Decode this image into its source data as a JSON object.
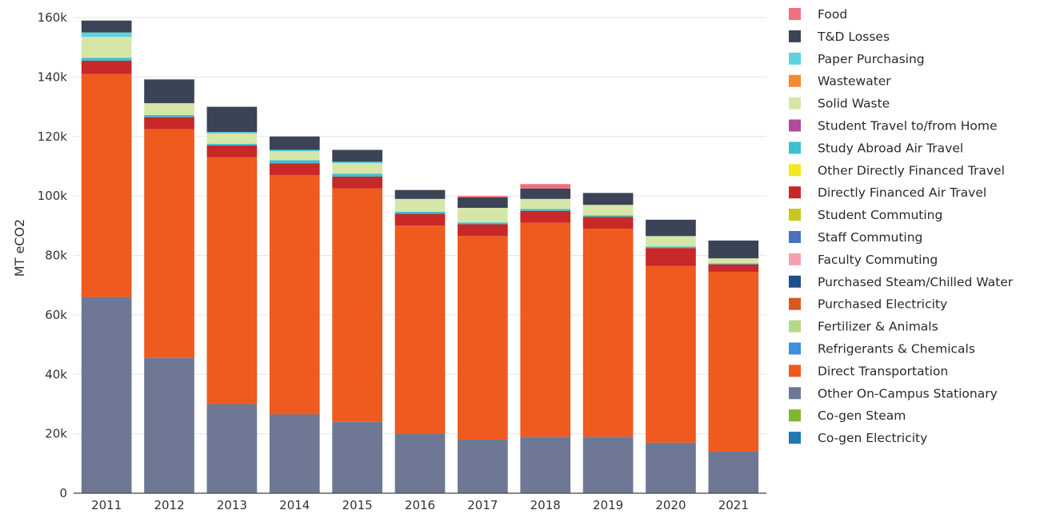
{
  "chart_data": {
    "type": "bar",
    "stacked": true,
    "ylabel": "MT eCO2",
    "ylim": [
      0,
      160000
    ],
    "yticks": [
      "0",
      "20k",
      "40k",
      "60k",
      "80k",
      "100k",
      "120k",
      "140k",
      "160k"
    ],
    "categories": [
      "2011",
      "2012",
      "2013",
      "2014",
      "2015",
      "2016",
      "2017",
      "2018",
      "2019",
      "2020",
      "2021"
    ],
    "legend_position": "right",
    "series": [
      {
        "name": "Co-gen Electricity",
        "color": "#1f77b4",
        "values": [
          0,
          0,
          0,
          0,
          0,
          0,
          0,
          0,
          0,
          0,
          0
        ]
      },
      {
        "name": "Co-gen Steam",
        "color": "#7cb82f",
        "values": [
          0,
          0,
          0,
          0,
          0,
          0,
          0,
          0,
          0,
          0,
          0
        ]
      },
      {
        "name": "Other On-Campus Stationary",
        "color": "#6e7894",
        "values": [
          66000,
          45500,
          30000,
          26500,
          24000,
          20000,
          18000,
          19000,
          19000,
          17000,
          14000
        ]
      },
      {
        "name": "Direct Transportation",
        "color": "#ef5a1e",
        "values": [
          75000,
          77000,
          83000,
          80500,
          78500,
          70000,
          68500,
          72000,
          70000,
          59500,
          60500
        ]
      },
      {
        "name": "Refrigerants & Chemicals",
        "color": "#3d8fe0",
        "values": [
          0,
          0,
          0,
          0,
          0,
          0,
          0,
          0,
          0,
          0,
          0
        ]
      },
      {
        "name": "Fertilizer & Animals",
        "color": "#b5d88a",
        "values": [
          0,
          0,
          0,
          0,
          0,
          0,
          0,
          0,
          0,
          0,
          0
        ]
      },
      {
        "name": "Purchased Electricity",
        "color": "#d9581f",
        "values": [
          0,
          0,
          0,
          0,
          0,
          0,
          0,
          0,
          0,
          0,
          0
        ]
      },
      {
        "name": "Purchased Steam/Chilled Water",
        "color": "#1c4f8a",
        "values": [
          0,
          0,
          0,
          0,
          0,
          0,
          0,
          0,
          0,
          0,
          0
        ]
      },
      {
        "name": "Faculty Commuting",
        "color": "#f4a0b0",
        "values": [
          0,
          0,
          0,
          0,
          0,
          0,
          0,
          0,
          0,
          0,
          0
        ]
      },
      {
        "name": "Staff Commuting",
        "color": "#4a72c4",
        "values": [
          0,
          0,
          0,
          0,
          0,
          0,
          0,
          0,
          0,
          0,
          0
        ]
      },
      {
        "name": "Student Commuting",
        "color": "#c8c81e",
        "values": [
          0,
          0,
          0,
          0,
          0,
          0,
          0,
          0,
          0,
          0,
          0
        ]
      },
      {
        "name": "Directly Financed Air Travel",
        "color": "#c82828",
        "values": [
          4500,
          4000,
          4000,
          4000,
          4000,
          4000,
          4000,
          4000,
          4000,
          6000,
          2500
        ]
      },
      {
        "name": "Other Directly Financed Travel",
        "color": "#f5e61e",
        "values": [
          0,
          0,
          0,
          0,
          0,
          0,
          0,
          0,
          0,
          0,
          0
        ]
      },
      {
        "name": "Study Abroad Air Travel",
        "color": "#3cc0d2",
        "values": [
          1000,
          700,
          500,
          1000,
          1000,
          700,
          600,
          600,
          500,
          500,
          300
        ]
      },
      {
        "name": "Student Travel to/from Home",
        "color": "#b04a9c",
        "values": [
          0,
          0,
          0,
          0,
          0,
          0,
          0,
          0,
          0,
          0,
          0
        ]
      },
      {
        "name": "Solid Waste",
        "color": "#d6e6a8",
        "values": [
          7000,
          4000,
          3500,
          3000,
          3500,
          4300,
          4900,
          3400,
          3500,
          3500,
          1700
        ]
      },
      {
        "name": "Wastewater",
        "color": "#f28a2e",
        "values": [
          0,
          0,
          0,
          0,
          0,
          0,
          0,
          0,
          0,
          0,
          0
        ]
      },
      {
        "name": "Paper Purchasing",
        "color": "#5ed2e0",
        "values": [
          1500,
          0,
          500,
          500,
          500,
          0,
          0,
          0,
          0,
          0,
          0
        ]
      },
      {
        "name": "T&D Losses",
        "color": "#3b4456",
        "values": [
          4000,
          8000,
          8500,
          4500,
          4000,
          3000,
          3500,
          3500,
          4000,
          5500,
          6000
        ]
      },
      {
        "name": "Food",
        "color": "#f0707e",
        "values": [
          0,
          0,
          0,
          0,
          0,
          0,
          500,
          1500,
          0,
          0,
          0
        ]
      }
    ]
  }
}
